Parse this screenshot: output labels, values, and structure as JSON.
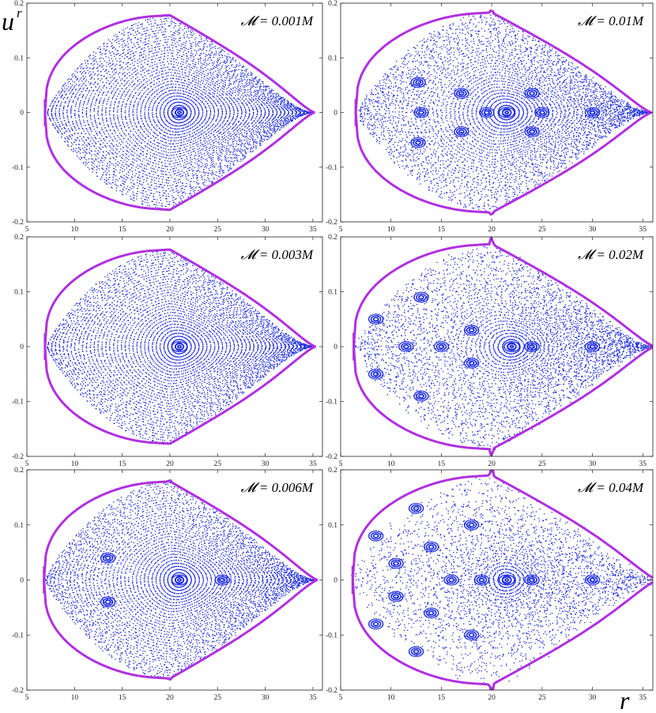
{
  "chart_data": {
    "type": "scatter",
    "description_type": "Poincare sections",
    "xlabel": "r",
    "ylabel": "u",
    "ylabel_sup": "r",
    "xlim": [
      5,
      36
    ],
    "ylim": [
      -0.2,
      0.2
    ],
    "xticks": [
      "5",
      "10",
      "15",
      "20",
      "25",
      "30",
      "35"
    ],
    "yticks": [
      "-0.2",
      "-0.1",
      "0",
      "0.1",
      "0.2"
    ],
    "colors": {
      "orbits": "#1f2ee0",
      "boundary": "#b030e0"
    },
    "panels": [
      {
        "label": "𝓜 = 0.001M",
        "mass": 0.001,
        "rmin": 6.9,
        "rmax": 35.2,
        "rtip": 20.0,
        "umax": 0.178,
        "center_r": 21.0,
        "spike": 0.0,
        "islands": []
      },
      {
        "label": "𝓜 = 0.01M",
        "mass": 0.01,
        "rmin": 6.5,
        "rmax": 35.9,
        "rtip": 20.0,
        "umax": 0.183,
        "center_r": 21.5,
        "spike": 0.006,
        "islands": [
          [
            13,
            0.0
          ],
          [
            19.5,
            0.0
          ],
          [
            25,
            0.0
          ],
          [
            30.0,
            0.0
          ],
          [
            12.7,
            0.055
          ],
          [
            12.7,
            -0.055
          ],
          [
            17,
            0.035
          ],
          [
            17,
            -0.035
          ],
          [
            24,
            0.035
          ],
          [
            24,
            -0.035
          ]
        ]
      },
      {
        "label": "𝓜 = 0.003M",
        "mass": 0.003,
        "rmin": 6.9,
        "rmax": 35.3,
        "rtip": 20.0,
        "umax": 0.177,
        "center_r": 21.0,
        "spike": 0.0,
        "islands": []
      },
      {
        "label": "𝓜 = 0.02M",
        "mass": 0.02,
        "rmin": 6.3,
        "rmax": 36.2,
        "rtip": 20.0,
        "umax": 0.187,
        "center_r": 22.0,
        "spike": 0.015,
        "islands": [
          [
            8.5,
            0.05
          ],
          [
            8.5,
            -0.05
          ],
          [
            11.5,
            0.0
          ],
          [
            15,
            0.0
          ],
          [
            24,
            0.0
          ],
          [
            30,
            0.0
          ],
          [
            13,
            0.09
          ],
          [
            13,
            -0.09
          ],
          [
            18,
            0.03
          ],
          [
            18,
            -0.03
          ]
        ]
      },
      {
        "label": "𝓜 = 0.006M",
        "mass": 0.006,
        "rmin": 6.8,
        "rmax": 35.5,
        "rtip": 20.0,
        "umax": 0.179,
        "center_r": 21.0,
        "spike": 0.003,
        "islands": [
          [
            13.5,
            0.04
          ],
          [
            13.5,
            -0.04
          ],
          [
            25.5,
            0.0
          ]
        ]
      },
      {
        "label": "𝓜 = 0.04M",
        "mass": 0.04,
        "rmin": 6.2,
        "rmax": 36.5,
        "rtip": 20.0,
        "umax": 0.19,
        "center_r": 21.5,
        "spike": 0.025,
        "islands": [
          [
            8.5,
            0.08
          ],
          [
            8.5,
            -0.08
          ],
          [
            10.5,
            0.03
          ],
          [
            10.5,
            -0.03
          ],
          [
            12.5,
            0.13
          ],
          [
            12.5,
            -0.13
          ],
          [
            16,
            0.0
          ],
          [
            19,
            0.0
          ],
          [
            24,
            0.0
          ],
          [
            30,
            0.0
          ],
          [
            14,
            0.06
          ],
          [
            14,
            -0.06
          ],
          [
            18,
            0.1
          ],
          [
            18,
            -0.1
          ]
        ]
      }
    ]
  }
}
